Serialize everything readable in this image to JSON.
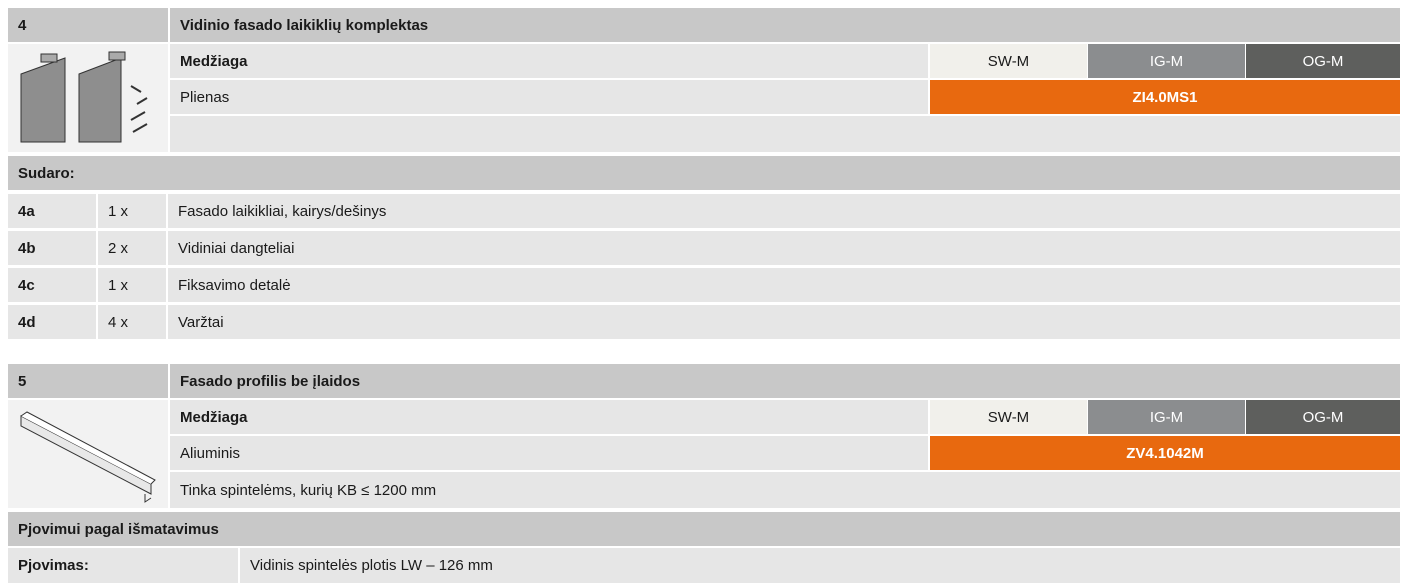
{
  "sections": [
    {
      "number": "4",
      "title": "Vidinio fasado laikiklių komplektas",
      "material_label": "Medžiaga",
      "finishes": [
        "SW-M",
        "IG-M",
        "OG-M"
      ],
      "material": "Plienas",
      "article": "ZI4.0MS1",
      "contents_label": "Sudaro:",
      "contents": [
        [
          "4a",
          "1 x",
          "Fasado laikikliai, kairys/dešinys"
        ],
        [
          "4b",
          "2 x",
          "Vidiniai dangteliai"
        ],
        [
          "4c",
          "1 x",
          "Fiksavimo detalė"
        ],
        [
          "4d",
          "4 x",
          "Varžtai"
        ]
      ]
    },
    {
      "number": "5",
      "title": "Fasado profilis be įlaidos",
      "material_label": "Medžiaga",
      "finishes": [
        "SW-M",
        "IG-M",
        "OG-M"
      ],
      "material": "Aliuminis",
      "article": "ZV4.1042M",
      "note": "Tinka spintelėms, kurių KB ≤ 1200 mm",
      "cutting_title": "Pjovimui pagal išmatavimus",
      "cutting_label": "Pjovimas:",
      "cutting_value": "Vidinis spintelės plotis LW – 126 mm"
    }
  ]
}
